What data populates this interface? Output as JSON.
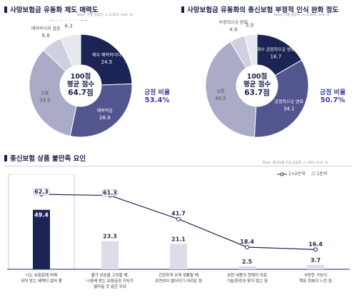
{
  "chart_data": [
    {
      "type": "pie",
      "title": "사망보험금 유동화 제도 매력도",
      "note": "Base: 전체 응답자, n=1,019, Unit: %",
      "center_lines": [
        "100점",
        "평균 점수",
        "64.7점"
      ],
      "side_lines": [
        "긍정 비율",
        "53.4%"
      ],
      "slices": [
        {
          "label": "매우 매력적이다",
          "value": 24.5,
          "color": "#1b2454"
        },
        {
          "label": "매력적임",
          "value": 28.9,
          "color": "#53558f"
        },
        {
          "label": "보통",
          "value": 33.9,
          "color": "#a9abc7"
        },
        {
          "label": "매력적이지 않음",
          "value": 6.6,
          "color": "#ced0e0"
        },
        {
          "label": "전혀 매력적이지 않음",
          "value": 6.3,
          "color": "#e6e7ef"
        }
      ]
    },
    {
      "type": "pie",
      "title": "사망보험금 유동화의 종신보험 부정적 인식 완화 정도",
      "note": "Base: 전체 응답자, n=1,019, Unit: %",
      "center_lines": [
        "100점",
        "평균 점수",
        "63.7점"
      ],
      "side_lines": [
        "긍정 비율",
        "50.7%"
      ],
      "slices": [
        {
          "label": "매우 긍정적으로 변화",
          "value": 16.7,
          "color": "#1b2454"
        },
        {
          "label": "긍정적으로 변화",
          "value": 34.1,
          "color": "#53558f"
        },
        {
          "label": "보통",
          "value": 40.5,
          "color": "#a9abc7"
        },
        {
          "label": "부정적으로 변화",
          "value": 4.8,
          "color": "#ced0e0"
        },
        {
          "label": "매우 부정적으로 변화",
          "value": 3.9,
          "color": "#e6e7ef"
        }
      ]
    },
    {
      "type": "bar",
      "title": "종신보험 상품 불만족 요인",
      "note": "Base: 종신보험 가입 응답자, n=403, Unit: %",
      "legend": [
        "1+2순위",
        "1순위"
      ],
      "categories": [
        [
          "나는 보험료에 비해",
          "뒤처 받는 혜택이 없어 좋"
        ],
        [
          "물가 상승을 고려할 때,",
          "나중에 받는 보험금의 가치가",
          "떨어질 것 같은 우려"
        ],
        [
          "건강하게 오래 생활할 때",
          "유연성이 떨어지기 어려운 점"
        ],
        [
          "보장 내용이 현재의 의료",
          "기술/환경과 맞지 않는 점"
        ],
        [
          "사망한 가능이",
          "목표 회복이 느린 점"
        ]
      ],
      "series": [
        {
          "name": "1+2순위",
          "values": [
            62.3,
            61.3,
            41.7,
            18.4,
            16.4
          ],
          "color": "#1b2454"
        },
        {
          "name": "1순위",
          "values": [
            49.4,
            23.3,
            21.1,
            2.5,
            3.7
          ],
          "color": "#1b2454",
          "color_other": "#dcdde8"
        }
      ],
      "ylim": [
        0,
        70
      ]
    }
  ]
}
